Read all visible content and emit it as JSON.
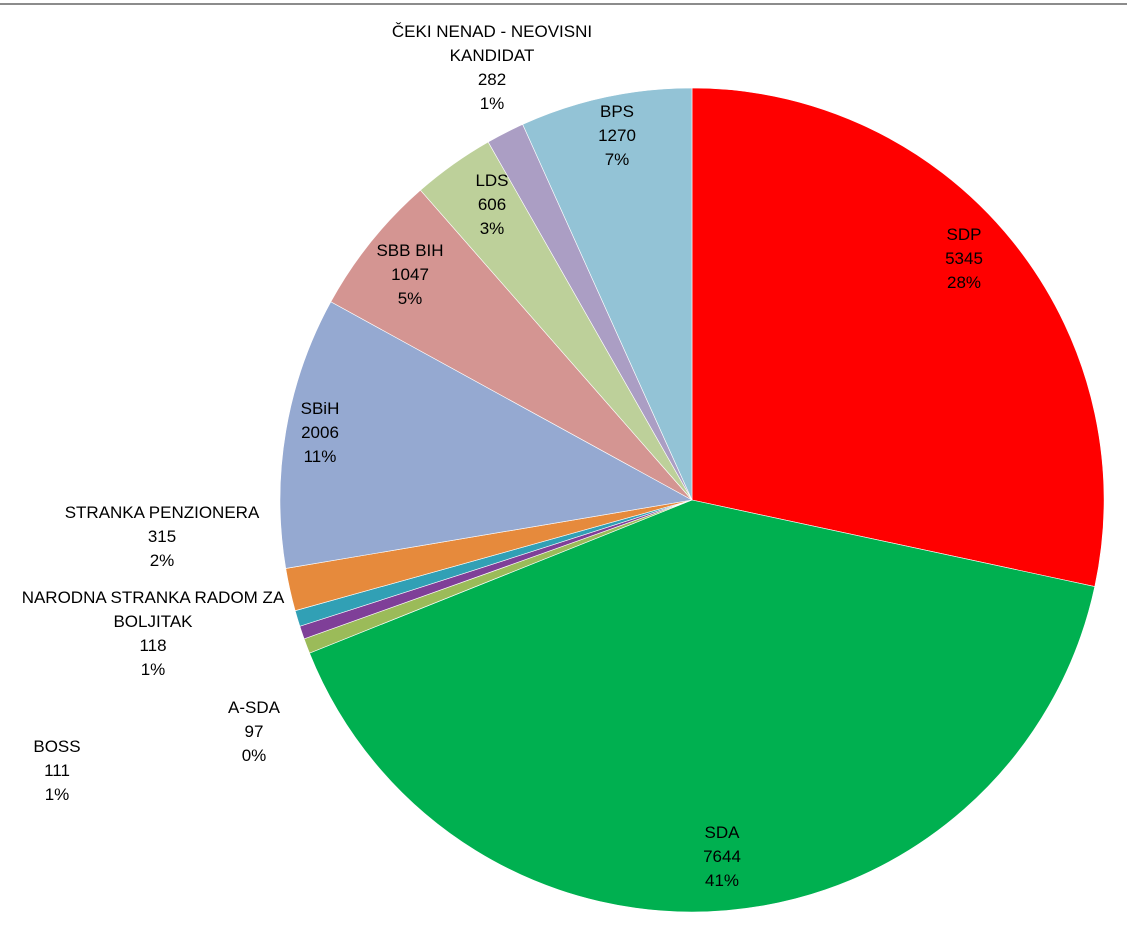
{
  "chart_data": {
    "type": "pie",
    "title": "",
    "start": "12 o'clock, clockwise",
    "slices": [
      {
        "name": "SDP",
        "value": 5345,
        "percent": "28%",
        "color": "#ff0000"
      },
      {
        "name": "SDA",
        "value": 7644,
        "percent": "41%",
        "color": "#00b050"
      },
      {
        "name": "BOSS",
        "value": 111,
        "percent": "1%",
        "color": "#9bbb59"
      },
      {
        "name": "A-SDA",
        "value": 97,
        "percent": "0%",
        "color": "#7f3f98"
      },
      {
        "name": "NARODNA STRANKA RADOM ZA BOLJITAK",
        "value": 118,
        "percent": "1%",
        "color": "#31a0b5"
      },
      {
        "name": "STRANKA PENZIONERA",
        "value": 315,
        "percent": "2%",
        "color": "#e68a3c"
      },
      {
        "name": "SBiH",
        "value": 2006,
        "percent": "11%",
        "color": "#95a9d1"
      },
      {
        "name": "SBB BIH",
        "value": 1047,
        "percent": "5%",
        "color": "#d49592"
      },
      {
        "name": "LDS",
        "value": 606,
        "percent": "3%",
        "color": "#bdd09a"
      },
      {
        "name": "ČEKI NENAD - NEOVISNI KANDIDAT",
        "value": 282,
        "percent": "1%",
        "color": "#ab9ec4"
      },
      {
        "name": "BPS",
        "value": 1270,
        "percent": "7%",
        "color": "#93c3d6"
      }
    ]
  }
}
